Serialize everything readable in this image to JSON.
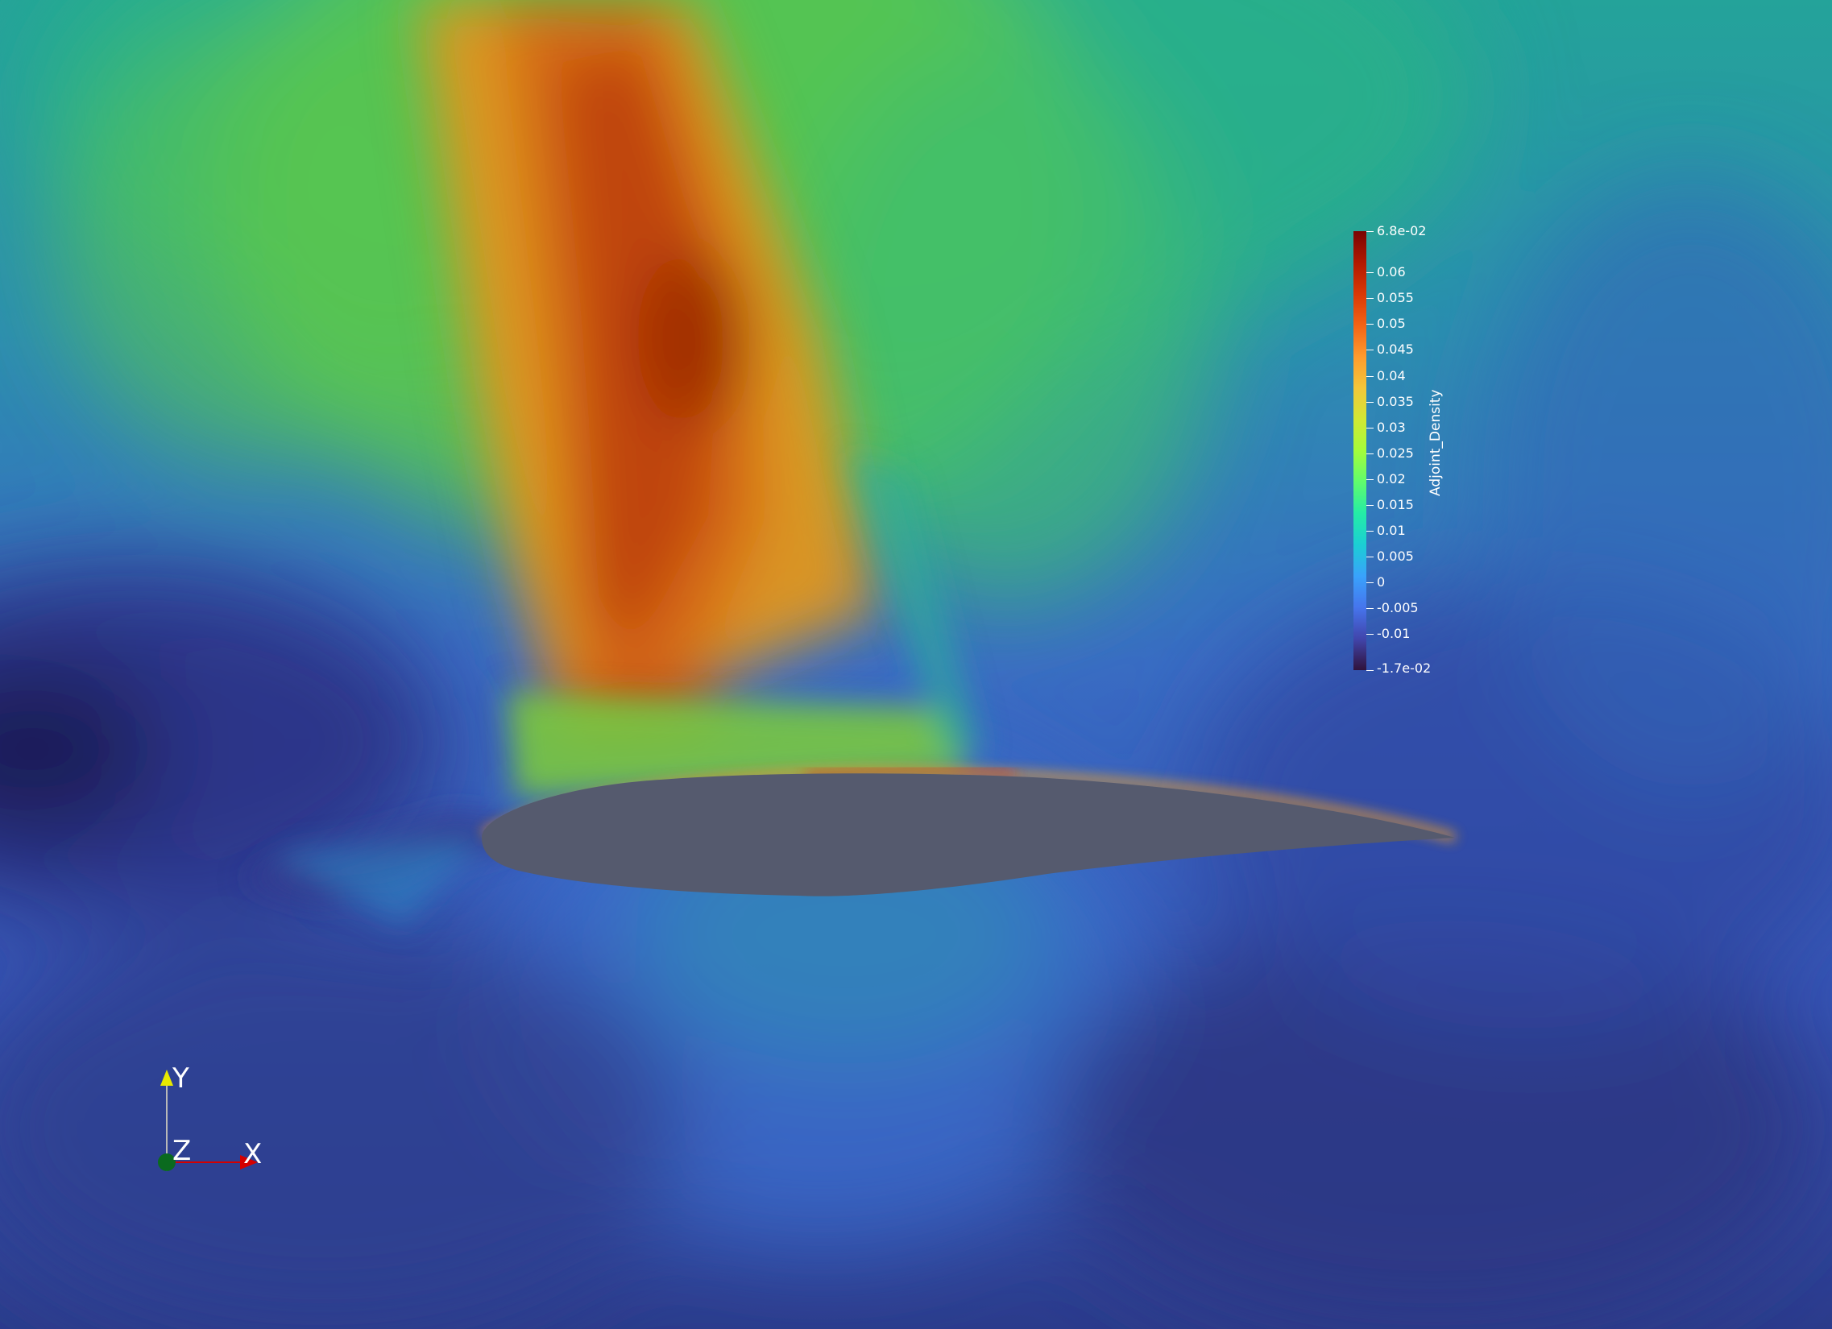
{
  "scalar_bar": {
    "title": "Adjoint_Density",
    "max_label": "6.8e-02",
    "min_label": "-1.7e-02",
    "min_value": -0.017,
    "max_value": 0.068,
    "ticks": [
      {
        "value": 0.06,
        "label": "0.06"
      },
      {
        "value": 0.055,
        "label": "0.055"
      },
      {
        "value": 0.05,
        "label": "0.05"
      },
      {
        "value": 0.045,
        "label": "0.045"
      },
      {
        "value": 0.04,
        "label": "0.04"
      },
      {
        "value": 0.035,
        "label": "0.035"
      },
      {
        "value": 0.03,
        "label": "0.03"
      },
      {
        "value": 0.025,
        "label": "0.025"
      },
      {
        "value": 0.02,
        "label": "0.02"
      },
      {
        "value": 0.015,
        "label": "0.015"
      },
      {
        "value": 0.01,
        "label": "0.01"
      },
      {
        "value": 0.005,
        "label": "0.005"
      },
      {
        "value": 0,
        "label": "0"
      },
      {
        "value": -0.005,
        "label": "-0.005"
      },
      {
        "value": -0.01,
        "label": "-0.01"
      }
    ],
    "colormap": [
      "#30123b",
      "#4145ab",
      "#4675ed",
      "#39a2fc",
      "#1bcfd4",
      "#24eca6",
      "#61fc6c",
      "#a4fc3b",
      "#d1e834",
      "#f3c63a",
      "#fe9b2d",
      "#f36315",
      "#d93806",
      "#b11901",
      "#7a0402"
    ]
  },
  "orientation_axes": {
    "x_label": "X",
    "y_label": "Y",
    "z_label": "Z",
    "x_color": "#d40000",
    "y_color": "#e8e800",
    "z_color": "#0a6a1e"
  },
  "airfoil": {
    "color": "#555a6e"
  }
}
